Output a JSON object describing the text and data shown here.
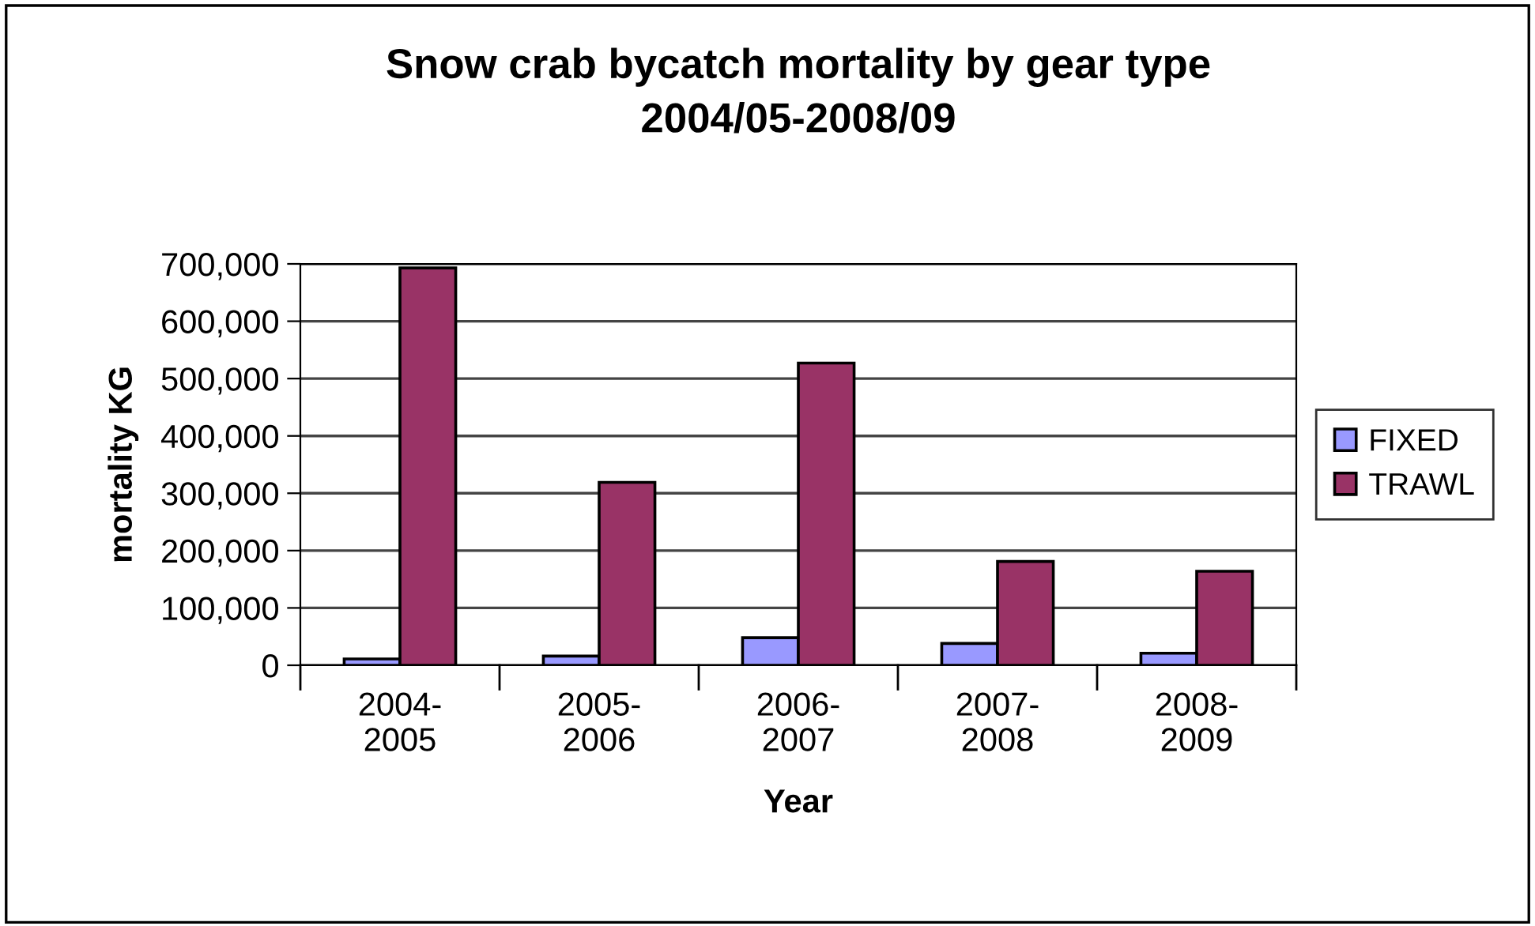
{
  "chart_data": {
    "type": "bar",
    "title": "Snow crab bycatch mortality by gear type\n2004/05-2008/09",
    "xlabel": "Year",
    "ylabel": "mortality KG",
    "categories": [
      "2004-\n2005",
      "2005-\n2006",
      "2006-\n2007",
      "2007-\n2008",
      "2008-\n2009"
    ],
    "series": [
      {
        "name": "FIXED",
        "color": "#9999ff",
        "values": [
          11000,
          16000,
          48000,
          38000,
          21000
        ]
      },
      {
        "name": "TRAWL",
        "color": "#993366",
        "values": [
          693000,
          319000,
          527000,
          181000,
          164000
        ]
      }
    ],
    "ylim": [
      0,
      700000
    ],
    "yticks": [
      {
        "value": 0,
        "label": "0"
      },
      {
        "value": 100000,
        "label": "100,000"
      },
      {
        "value": 200000,
        "label": "200,000"
      },
      {
        "value": 300000,
        "label": "300,000"
      },
      {
        "value": 400000,
        "label": "400,000"
      },
      {
        "value": 500000,
        "label": "500,000"
      },
      {
        "value": 600000,
        "label": "600,000"
      },
      {
        "value": 700000,
        "label": "700,000"
      }
    ],
    "grid": "y",
    "legend": "right"
  }
}
